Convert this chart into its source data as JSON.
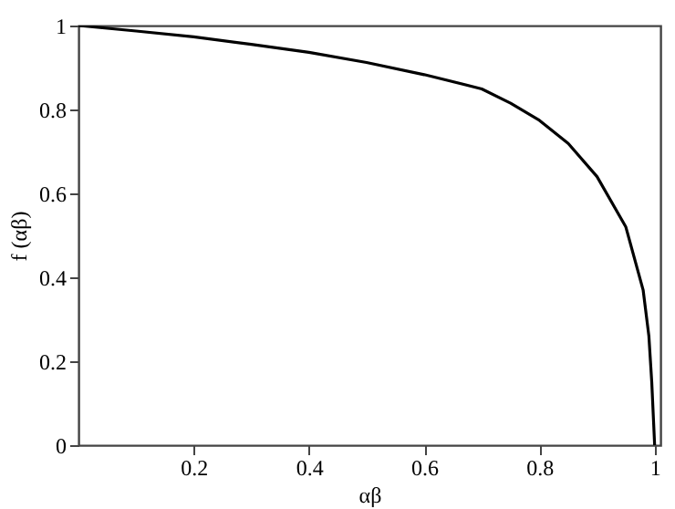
{
  "chart_data": {
    "type": "line",
    "xlabel": "αβ",
    "ylabel": "f (αβ)",
    "x": [
      0,
      0.1,
      0.2,
      0.3,
      0.4,
      0.5,
      0.6,
      0.7,
      0.75,
      0.8,
      0.85,
      0.9,
      0.95,
      0.98,
      0.99,
      0.995,
      1.0
    ],
    "series": [
      {
        "color": "#000000",
        "values": [
          1,
          0.987,
          0.973,
          0.955,
          0.936,
          0.912,
          0.883,
          0.849,
          0.815,
          0.774,
          0.719,
          0.64,
          0.52,
          0.37,
          0.26,
          0.15,
          0
        ]
      }
    ],
    "xlim": [
      0,
      1.01
    ],
    "ylim": [
      0,
      1
    ],
    "xticks": [
      0.2,
      0.4,
      0.6,
      0.8,
      1
    ],
    "yticks": [
      0,
      0.2,
      0.4,
      0.6,
      0.8,
      1
    ],
    "grid": false,
    "marker": "none",
    "line_style": "solid"
  }
}
